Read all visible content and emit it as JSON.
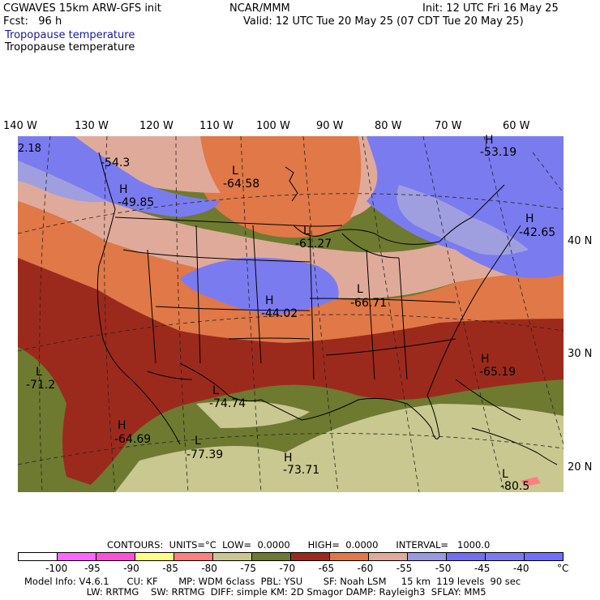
{
  "header": {
    "model": "CGWAVES 15km ARW-GFS init",
    "org": "NCAR/MMM",
    "init": "Init: 12 UTC Fri 16 May 25",
    "fcst": "Fcst:   96 h",
    "valid": "Valid: 12 UTC Tue 20 May 25 (07 CDT Tue 20 May 25)",
    "field_blue": "Tropopause temperature",
    "field_black": "Tropopause temperature"
  },
  "lon_labels": [
    "140 W",
    "130 W",
    "120 W",
    "110 W",
    "100 W",
    "90 W",
    "80 W",
    "70 W",
    "60 W"
  ],
  "lat_labels": [
    "40 N",
    "30 N",
    "20 N"
  ],
  "map_labels": [
    {
      "text": "2.18"
    },
    {
      "text": "-54.3"
    },
    {
      "text": "H"
    },
    {
      "text": "-49.85"
    },
    {
      "text": "L"
    },
    {
      "text": "-64.58"
    },
    {
      "text": "H"
    },
    {
      "text": "-53.19"
    },
    {
      "text": "H"
    },
    {
      "text": "-42.65"
    },
    {
      "text": "L"
    },
    {
      "text": "-61.27"
    },
    {
      "text": "L"
    },
    {
      "text": "-66.71"
    },
    {
      "text": "H"
    },
    {
      "text": "-44.02"
    },
    {
      "text": "H"
    },
    {
      "text": "-65.19"
    },
    {
      "text": "L"
    },
    {
      "text": "-71.2"
    },
    {
      "text": "L"
    },
    {
      "text": "-74.74"
    },
    {
      "text": "H"
    },
    {
      "text": "-64.69"
    },
    {
      "text": "L"
    },
    {
      "text": "-77.39"
    },
    {
      "text": "H"
    },
    {
      "text": "-73.71"
    },
    {
      "text": "L"
    },
    {
      "text": "-80.5"
    }
  ],
  "contours": "CONTOURS:  UNITS=°C  LOW=  0.0000      HIGH=  0.0000      INTERVAL=   1000.0",
  "colorbar": {
    "colors": [
      "#ffffff",
      "#ff66ff",
      "#ff4fd8",
      "#ffff88",
      "#ff8080",
      "#c8c890",
      "#6e7a30",
      "#9c2a1c",
      "#e07848",
      "#e0aa9a",
      "#9999e0",
      "#6f6ff0",
      "#7b7bf0",
      "#7070ff"
    ],
    "labels": [
      "-100",
      "-95",
      "-90",
      "-85",
      "-80",
      "-75",
      "-70",
      "-65",
      "-60",
      "-55",
      "-50",
      "-45",
      "-40",
      "°C"
    ]
  },
  "footer": {
    "line1": "Model Info: V4.6.1      CU: KF       MP: WDM 6class  PBL: YSU       SF: Noah LSM     15 km  119 levels  90 sec",
    "line2": "                     LW: RRTMG    SW: RRTMG  DIFF: simple KM: 2D Smagor DAMP: Rayleigh3  SFLAY: MM5"
  },
  "palette": {
    "blue": "#7b7bf0",
    "lav": "#9f9fe0",
    "pink": "#e0aa9a",
    "orange": "#e07848",
    "red": "#9c2a1c",
    "olive": "#6e7a30",
    "khaki": "#c8c890",
    "salmon": "#ff8080"
  }
}
